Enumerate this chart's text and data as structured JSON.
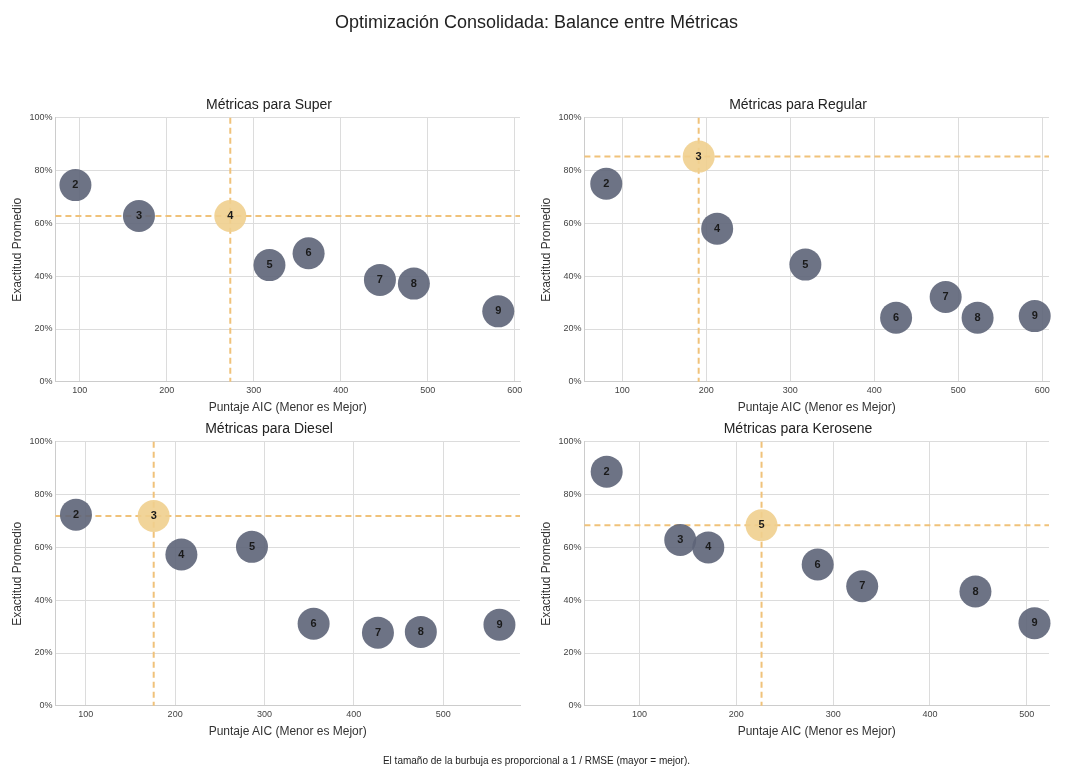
{
  "chart_data": [
    {
      "type": "other",
      "title": "Optimización Consolidada: Balance entre Métricas"
    },
    {
      "type": "bubble",
      "title": "Métricas para Super",
      "xlabel": "Puntaje AIC (Menor es Mejor)",
      "ylabel": "Exactitud Promedio",
      "x": [
        95,
        168,
        273,
        318,
        363,
        445,
        484,
        581
      ],
      "values": [
        74.5,
        62.8,
        62.8,
        44.2,
        48.7,
        38.6,
        37.2,
        26.7
      ],
      "sizes": [
        1,
        1,
        1,
        1,
        1,
        1,
        1,
        1
      ],
      "annotations": [
        {
          "text": "2",
          "x": 95,
          "y": 74.5
        },
        {
          "text": "3",
          "x": 168,
          "y": 62.8
        },
        {
          "text": "4",
          "x": 273,
          "y": 62.8
        },
        {
          "text": "5",
          "x": 318,
          "y": 44.2
        },
        {
          "text": "6",
          "x": 363,
          "y": 48.7
        },
        {
          "text": "7",
          "x": 445,
          "y": 38.6
        },
        {
          "text": "8",
          "x": 484,
          "y": 37.2
        },
        {
          "text": "9",
          "x": 581,
          "y": 26.7
        }
      ],
      "colors": [
        "#5d6478",
        "#5d6478",
        "#f0cf8e",
        "#5d6478",
        "#5d6478",
        "#5d6478",
        "#5d6478",
        "#5d6478"
      ],
      "xlim": [
        72,
        606
      ],
      "xticks": [
        100,
        200,
        300,
        400,
        500,
        600
      ],
      "ylim": [
        0,
        100
      ],
      "yticks": [
        {
          "value": 0,
          "label": "0%"
        },
        {
          "value": 20,
          "label": "20%"
        },
        {
          "value": 40,
          "label": "40%"
        },
        {
          "value": 60,
          "label": "60%"
        },
        {
          "value": 80,
          "label": "80%"
        },
        {
          "value": 100,
          "label": "100%"
        }
      ],
      "ref_lines": [
        {
          "axis": "x",
          "value": 273,
          "color": "#f0c27a",
          "line_style": "dashed"
        },
        {
          "axis": "y",
          "value": 62.8,
          "color": "#f0c27a",
          "line_style": "dashed"
        }
      ],
      "grid": true
    },
    {
      "type": "bubble",
      "title": "Métricas para Regular",
      "xlabel": "Puntaje AIC (Menor es Mejor)",
      "ylabel": "Exactitud Promedio",
      "x": [
        81,
        191,
        213,
        318,
        426,
        485,
        523,
        591
      ],
      "values": [
        75.0,
        85.3,
        58.0,
        44.4,
        24.3,
        32.1,
        24.3,
        24.9
      ],
      "sizes": [
        1,
        1,
        1,
        1,
        1,
        1,
        1,
        1
      ],
      "annotations": [
        {
          "text": "2",
          "x": 81,
          "y": 75.0
        },
        {
          "text": "3",
          "x": 191,
          "y": 85.3
        },
        {
          "text": "4",
          "x": 213,
          "y": 58.0
        },
        {
          "text": "5",
          "x": 318,
          "y": 44.4
        },
        {
          "text": "6",
          "x": 426,
          "y": 24.3
        },
        {
          "text": "7",
          "x": 485,
          "y": 32.1
        },
        {
          "text": "8",
          "x": 523,
          "y": 24.3
        },
        {
          "text": "9",
          "x": 591,
          "y": 24.9
        }
      ],
      "colors": [
        "#5d6478",
        "#f0cf8e",
        "#5d6478",
        "#5d6478",
        "#5d6478",
        "#5d6478",
        "#5d6478",
        "#5d6478"
      ],
      "xlim": [
        55,
        608
      ],
      "xticks": [
        100,
        200,
        300,
        400,
        500,
        600
      ],
      "ylim": [
        0,
        100
      ],
      "yticks": [
        {
          "value": 0,
          "label": "0%"
        },
        {
          "value": 20,
          "label": "20%"
        },
        {
          "value": 40,
          "label": "40%"
        },
        {
          "value": 60,
          "label": "60%"
        },
        {
          "value": 80,
          "label": "80%"
        },
        {
          "value": 100,
          "label": "100%"
        }
      ],
      "ref_lines": [
        {
          "axis": "x",
          "value": 191,
          "color": "#f0c27a",
          "line_style": "dashed"
        },
        {
          "axis": "y",
          "value": 85.3,
          "color": "#f0c27a",
          "line_style": "dashed"
        }
      ],
      "grid": true
    },
    {
      "type": "bubble",
      "title": "Métricas para Diesel",
      "xlabel": "Puntaje AIC (Menor es Mejor)",
      "ylabel": "Exactitud Promedio",
      "x": [
        89,
        176,
        207,
        286,
        355,
        427,
        475,
        563
      ],
      "values": [
        72.4,
        71.9,
        57.3,
        60.2,
        31.1,
        27.7,
        28.0,
        30.7
      ],
      "sizes": [
        1,
        1,
        1,
        1,
        1,
        1,
        1,
        1
      ],
      "annotations": [
        {
          "text": "2",
          "x": 89,
          "y": 72.4
        },
        {
          "text": "3",
          "x": 176,
          "y": 71.9
        },
        {
          "text": "4",
          "x": 207,
          "y": 57.3
        },
        {
          "text": "5",
          "x": 286,
          "y": 60.2
        },
        {
          "text": "6",
          "x": 355,
          "y": 31.1
        },
        {
          "text": "7",
          "x": 427,
          "y": 27.7
        },
        {
          "text": "8",
          "x": 475,
          "y": 28.0
        },
        {
          "text": "9",
          "x": 563,
          "y": 30.7
        }
      ],
      "colors": [
        "#5d6478",
        "#f0cf8e",
        "#5d6478",
        "#5d6478",
        "#5d6478",
        "#5d6478",
        "#5d6478",
        "#5d6478"
      ],
      "xlim": [
        66,
        586
      ],
      "xticks": [
        100,
        200,
        300,
        400,
        500
      ],
      "ylim": [
        0,
        100
      ],
      "yticks": [
        {
          "value": 0,
          "label": "0%"
        },
        {
          "value": 20,
          "label": "20%"
        },
        {
          "value": 40,
          "label": "40%"
        },
        {
          "value": 60,
          "label": "60%"
        },
        {
          "value": 80,
          "label": "80%"
        },
        {
          "value": 100,
          "label": "100%"
        }
      ],
      "ref_lines": [
        {
          "axis": "x",
          "value": 176,
          "color": "#f0c27a",
          "line_style": "dashed"
        },
        {
          "axis": "y",
          "value": 71.9,
          "color": "#f0c27a",
          "line_style": "dashed"
        }
      ],
      "grid": true
    },
    {
      "type": "bubble",
      "title": "Métricas para Kerosene",
      "xlabel": "Puntaje AIC (Menor es Mejor)",
      "ylabel": "Exactitud Promedio",
      "x": [
        66,
        142,
        171,
        226,
        284,
        330,
        447,
        508
      ],
      "values": [
        88.7,
        62.8,
        60.0,
        68.4,
        53.5,
        45.3,
        43.3,
        31.3
      ],
      "sizes": [
        1,
        1,
        1,
        1,
        1,
        1,
        1,
        1
      ],
      "annotations": [
        {
          "text": "2",
          "x": 66,
          "y": 88.7
        },
        {
          "text": "3",
          "x": 142,
          "y": 62.8
        },
        {
          "text": "4",
          "x": 171,
          "y": 60.0
        },
        {
          "text": "5",
          "x": 226,
          "y": 68.4
        },
        {
          "text": "6",
          "x": 284,
          "y": 53.5
        },
        {
          "text": "7",
          "x": 330,
          "y": 45.3
        },
        {
          "text": "8",
          "x": 447,
          "y": 43.3
        },
        {
          "text": "9",
          "x": 508,
          "y": 31.3
        }
      ],
      "colors": [
        "#5d6478",
        "#5d6478",
        "#5d6478",
        "#f0cf8e",
        "#5d6478",
        "#5d6478",
        "#5d6478",
        "#5d6478"
      ],
      "xlim": [
        43,
        523
      ],
      "xticks": [
        100,
        200,
        300,
        400,
        500
      ],
      "ylim": [
        0,
        100
      ],
      "yticks": [
        {
          "value": 0,
          "label": "0%"
        },
        {
          "value": 20,
          "label": "20%"
        },
        {
          "value": 40,
          "label": "40%"
        },
        {
          "value": 60,
          "label": "60%"
        },
        {
          "value": 80,
          "label": "80%"
        },
        {
          "value": 100,
          "label": "100%"
        }
      ],
      "ref_lines": [
        {
          "axis": "x",
          "value": 226,
          "color": "#f0c27a",
          "line_style": "dashed"
        },
        {
          "axis": "y",
          "value": 68.4,
          "color": "#f0c27a",
          "line_style": "dashed"
        }
      ],
      "grid": true
    },
    {
      "type": "other",
      "annotations": [
        "El tamaño de la burbuja es proporcional a 1 / RMSE (mayor = mejor)."
      ]
    }
  ]
}
